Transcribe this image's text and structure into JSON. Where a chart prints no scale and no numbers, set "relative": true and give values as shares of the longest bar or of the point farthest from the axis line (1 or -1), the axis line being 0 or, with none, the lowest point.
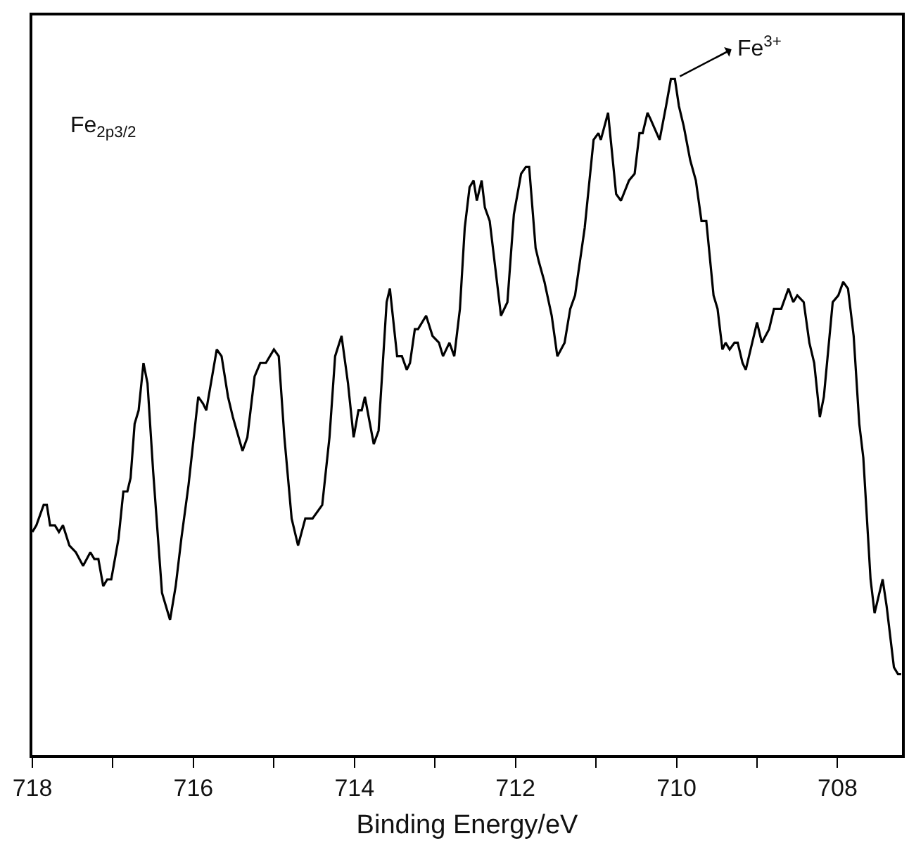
{
  "chart_data": {
    "type": "line",
    "relative": true,
    "xlabel": "Binding Energy/eV",
    "marker": "none",
    "line_style": "solid",
    "xlim": [
      718,
      707.2
    ],
    "xticks": [
      718,
      {
        "value": 717,
        "label": null
      },
      716,
      {
        "value": 715,
        "label": null
      },
      714,
      {
        "value": 713,
        "label": null
      },
      712,
      {
        "value": 711,
        "label": null
      },
      710,
      {
        "value": 709,
        "label": null
      },
      708
    ],
    "annotations": [
      "Fe$_{2p3/2}$",
      {
        "text": "Fe$^{3+}$",
        "x": 710.02,
        "y": 1.0
      }
    ],
    "series": [
      {
        "color": "#000000",
        "x": [
          718.0,
          717.95,
          717.86,
          717.82,
          717.78,
          717.72,
          717.67,
          717.62,
          717.54,
          717.46,
          717.37,
          717.28,
          717.23,
          717.18,
          717.12,
          717.07,
          717.02,
          716.93,
          716.87,
          716.82,
          716.78,
          716.73,
          716.68,
          716.62,
          716.57,
          716.5,
          716.39,
          716.29,
          716.22,
          716.15,
          716.06,
          715.94,
          715.88,
          715.84,
          715.71,
          715.65,
          715.57,
          715.51,
          715.39,
          715.33,
          715.24,
          715.17,
          715.1,
          715.0,
          714.94,
          714.87,
          714.78,
          714.7,
          714.61,
          714.52,
          714.4,
          714.31,
          714.24,
          714.16,
          714.08,
          714.01,
          713.95,
          713.91,
          713.87,
          713.76,
          713.7,
          713.6,
          713.56,
          713.47,
          713.41,
          713.35,
          713.31,
          713.25,
          713.21,
          713.11,
          713.03,
          712.95,
          712.9,
          712.82,
          712.76,
          712.69,
          712.63,
          712.57,
          712.52,
          712.48,
          712.42,
          712.38,
          712.32,
          712.25,
          712.18,
          712.1,
          712.02,
          711.93,
          711.87,
          711.83,
          711.75,
          711.71,
          711.64,
          711.55,
          711.48,
          711.39,
          711.32,
          711.26,
          711.14,
          711.03,
          710.97,
          710.94,
          710.85,
          710.75,
          710.69,
          710.59,
          710.52,
          710.46,
          710.42,
          710.36,
          710.32,
          710.21,
          710.13,
          710.07,
          710.02,
          709.97,
          709.91,
          709.83,
          709.76,
          709.69,
          709.63,
          709.54,
          709.49,
          709.43,
          709.39,
          709.34,
          709.28,
          709.24,
          709.18,
          709.14,
          709.0,
          708.94,
          708.85,
          708.79,
          708.7,
          708.61,
          708.55,
          708.5,
          708.42,
          708.35,
          708.29,
          708.22,
          708.17,
          708.06,
          707.99,
          707.93,
          707.87,
          707.8,
          707.73,
          707.68,
          707.59,
          707.54,
          707.44,
          707.39,
          707.3,
          707.25,
          707.21
        ],
        "values": [
          0.33,
          0.34,
          0.37,
          0.37,
          0.34,
          0.34,
          0.33,
          0.34,
          0.31,
          0.3,
          0.28,
          0.3,
          0.29,
          0.29,
          0.25,
          0.26,
          0.26,
          0.32,
          0.39,
          0.39,
          0.41,
          0.49,
          0.51,
          0.58,
          0.55,
          0.42,
          0.24,
          0.2,
          0.25,
          0.32,
          0.4,
          0.53,
          0.52,
          0.51,
          0.6,
          0.59,
          0.53,
          0.5,
          0.45,
          0.47,
          0.56,
          0.58,
          0.58,
          0.6,
          0.59,
          0.47,
          0.35,
          0.31,
          0.35,
          0.35,
          0.37,
          0.47,
          0.59,
          0.62,
          0.55,
          0.47,
          0.51,
          0.51,
          0.53,
          0.46,
          0.48,
          0.67,
          0.69,
          0.59,
          0.59,
          0.57,
          0.58,
          0.63,
          0.63,
          0.65,
          0.62,
          0.61,
          0.59,
          0.61,
          0.59,
          0.66,
          0.78,
          0.84,
          0.85,
          0.82,
          0.85,
          0.81,
          0.79,
          0.72,
          0.65,
          0.67,
          0.8,
          0.86,
          0.87,
          0.87,
          0.75,
          0.73,
          0.7,
          0.65,
          0.59,
          0.61,
          0.66,
          0.68,
          0.78,
          0.91,
          0.92,
          0.91,
          0.95,
          0.83,
          0.82,
          0.85,
          0.86,
          0.92,
          0.92,
          0.95,
          0.94,
          0.91,
          0.96,
          1.0,
          1.0,
          0.96,
          0.93,
          0.88,
          0.85,
          0.79,
          0.79,
          0.68,
          0.66,
          0.6,
          0.61,
          0.6,
          0.61,
          0.61,
          0.58,
          0.57,
          0.64,
          0.61,
          0.63,
          0.66,
          0.66,
          0.69,
          0.67,
          0.68,
          0.67,
          0.61,
          0.58,
          0.5,
          0.53,
          0.67,
          0.68,
          0.7,
          0.69,
          0.62,
          0.49,
          0.44,
          0.26,
          0.21,
          0.26,
          0.22,
          0.13,
          0.12,
          0.12
        ]
      }
    ]
  }
}
